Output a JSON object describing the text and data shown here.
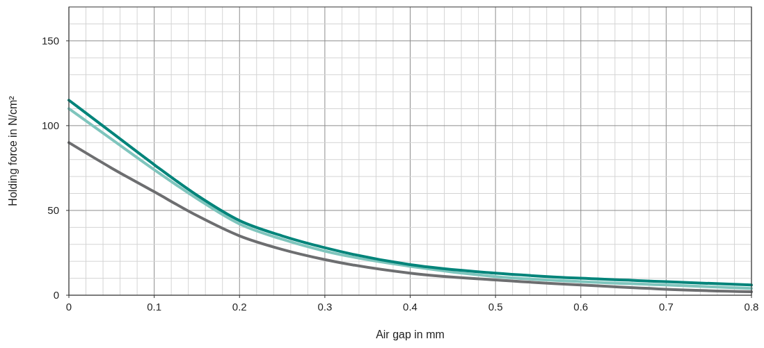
{
  "chart_data": {
    "type": "line",
    "xlabel": "Air gap in mm",
    "ylabel": "Holding force in N/cm²",
    "x": [
      0,
      0.05,
      0.1,
      0.15,
      0.2,
      0.25,
      0.3,
      0.4,
      0.5,
      0.6,
      0.7,
      0.8
    ],
    "series": [
      {
        "color": "#6d6e70",
        "values": [
          90,
          75,
          61,
          47,
          35,
          27,
          21,
          13,
          9,
          6,
          3.5,
          2
        ]
      },
      {
        "color": "#7fc5bd",
        "values": [
          110,
          92,
          74,
          57,
          42,
          33,
          26,
          17,
          11,
          8,
          6,
          4
        ]
      },
      {
        "color": "#00847a",
        "values": [
          115,
          96,
          77,
          59,
          44,
          35,
          28,
          18,
          13,
          10,
          8,
          6
        ]
      }
    ],
    "xlim": [
      0,
      0.8
    ],
    "ylim": [
      0,
      170
    ],
    "xticks": [
      0,
      {
        "value": 0.02,
        "label": null
      },
      {
        "value": 0.04,
        "label": null
      },
      {
        "value": 0.06,
        "label": null
      },
      {
        "value": 0.08,
        "label": null
      },
      0.1,
      {
        "value": 0.12,
        "label": null
      },
      {
        "value": 0.14,
        "label": null
      },
      {
        "value": 0.16,
        "label": null
      },
      {
        "value": 0.18,
        "label": null
      },
      0.2,
      {
        "value": 0.22,
        "label": null
      },
      {
        "value": 0.24,
        "label": null
      },
      {
        "value": 0.26,
        "label": null
      },
      {
        "value": 0.28,
        "label": null
      },
      0.3,
      {
        "value": 0.32,
        "label": null
      },
      {
        "value": 0.34,
        "label": null
      },
      {
        "value": 0.36,
        "label": null
      },
      {
        "value": 0.38,
        "label": null
      },
      0.4,
      {
        "value": 0.42,
        "label": null
      },
      {
        "value": 0.44,
        "label": null
      },
      {
        "value": 0.46,
        "label": null
      },
      {
        "value": 0.48,
        "label": null
      },
      0.5,
      {
        "value": 0.52,
        "label": null
      },
      {
        "value": 0.54,
        "label": null
      },
      {
        "value": 0.56,
        "label": null
      },
      {
        "value": 0.58,
        "label": null
      },
      0.6,
      {
        "value": 0.62,
        "label": null
      },
      {
        "value": 0.64,
        "label": null
      },
      {
        "value": 0.66,
        "label": null
      },
      {
        "value": 0.68,
        "label": null
      },
      0.7,
      {
        "value": 0.72,
        "label": null
      },
      {
        "value": 0.74,
        "label": null
      },
      {
        "value": 0.76,
        "label": null
      },
      {
        "value": 0.78,
        "label": null
      },
      0.8
    ],
    "yticks": [
      0,
      {
        "value": 10,
        "label": null
      },
      {
        "value": 20,
        "label": null
      },
      {
        "value": 30,
        "label": null
      },
      {
        "value": 40,
        "label": null
      },
      50,
      {
        "value": 60,
        "label": null
      },
      {
        "value": 70,
        "label": null
      },
      {
        "value": 80,
        "label": null
      },
      {
        "value": 90,
        "label": null
      },
      100,
      {
        "value": 110,
        "label": null
      },
      {
        "value": 120,
        "label": null
      },
      {
        "value": 130,
        "label": null
      },
      {
        "value": 140,
        "label": null
      },
      150,
      {
        "value": 160,
        "label": null
      }
    ],
    "grid": true
  }
}
